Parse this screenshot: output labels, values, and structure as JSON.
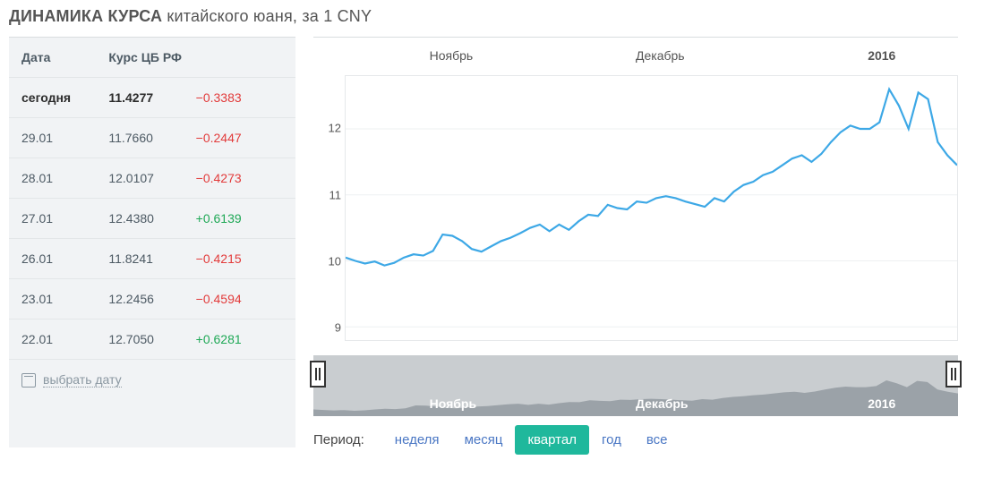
{
  "title_prefix": "ДИНАМИКА КУРСА",
  "title_suffix": "китайского юаня, за 1 CNY",
  "table": {
    "head_date": "Дата",
    "head_rate": "Курс ЦБ РФ",
    "rows": [
      {
        "date": "сегодня",
        "rate": "11.4277",
        "delta": "−0.3383",
        "sign": "neg",
        "bold": true
      },
      {
        "date": "29.01",
        "rate": "11.7660",
        "delta": "−0.2447",
        "sign": "neg",
        "bold": false
      },
      {
        "date": "28.01",
        "rate": "12.0107",
        "delta": "−0.4273",
        "sign": "neg",
        "bold": false
      },
      {
        "date": "27.01",
        "rate": "12.4380",
        "delta": "+0.6139",
        "sign": "pos",
        "bold": false
      },
      {
        "date": "26.01",
        "rate": "11.8241",
        "delta": "−0.4215",
        "sign": "neg",
        "bold": false
      },
      {
        "date": "23.01",
        "rate": "12.2456",
        "delta": "−0.4594",
        "sign": "neg",
        "bold": false
      },
      {
        "date": "22.01",
        "rate": "12.7050",
        "delta": "+0.6281",
        "sign": "pos",
        "bold": false
      }
    ],
    "pick_date_label": "выбрать дату"
  },
  "chart": {
    "type": "line",
    "line_color": "#3da8e6",
    "line_width": 2.2,
    "background_color": "#ffffff",
    "grid_color": "#eef0f2",
    "border_color": "#e6e8ea",
    "x_labels": [
      {
        "text": "Ноябрь",
        "pos_pct": 18
      },
      {
        "text": "Декабрь",
        "pos_pct": 50
      },
      {
        "text": "2016",
        "pos_pct": 86,
        "bold": true
      }
    ],
    "y_ticks": [
      9,
      10,
      11,
      12
    ],
    "ylim": [
      8.8,
      12.8
    ],
    "label_fontsize": 14,
    "label_color": "#555555",
    "values": [
      10.05,
      10.0,
      9.96,
      9.99,
      9.93,
      9.97,
      10.05,
      10.1,
      10.08,
      10.15,
      10.4,
      10.38,
      10.3,
      10.18,
      10.14,
      10.22,
      10.3,
      10.35,
      10.42,
      10.5,
      10.55,
      10.45,
      10.55,
      10.47,
      10.6,
      10.7,
      10.68,
      10.85,
      10.8,
      10.78,
      10.9,
      10.88,
      10.95,
      10.98,
      10.95,
      10.9,
      10.86,
      10.82,
      10.95,
      10.9,
      11.05,
      11.15,
      11.2,
      11.3,
      11.35,
      11.45,
      11.55,
      11.6,
      11.5,
      11.62,
      11.8,
      11.95,
      12.05,
      12.0,
      12.0,
      12.1,
      12.6,
      12.35,
      12.0,
      12.55,
      12.45,
      11.8,
      11.6,
      11.45
    ]
  },
  "overview": {
    "background_color": "#c9cdd0",
    "fill_color": "#9ba2a8",
    "labels": [
      {
        "text": "Ноябрь",
        "pos_pct": 18
      },
      {
        "text": "Декабрь",
        "pos_pct": 50
      },
      {
        "text": "2016",
        "pos_pct": 86,
        "bold": true
      }
    ]
  },
  "period": {
    "label": "Период:",
    "options": [
      {
        "key": "week",
        "label": "неделя",
        "active": false
      },
      {
        "key": "month",
        "label": "месяц",
        "active": false
      },
      {
        "key": "quarter",
        "label": "квартал",
        "active": true
      },
      {
        "key": "year",
        "label": "год",
        "active": false
      },
      {
        "key": "all",
        "label": "все",
        "active": false
      }
    ]
  }
}
